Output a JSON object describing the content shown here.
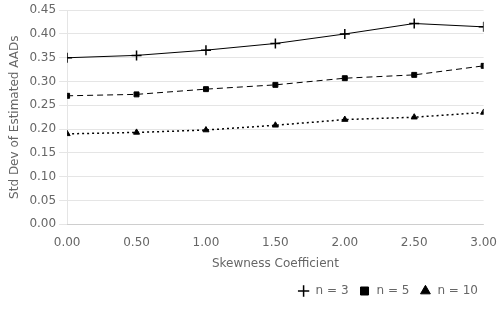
{
  "chart_data": {
    "type": "line",
    "xlabel": "Skewness Coefficient",
    "ylabel": "Std Dev of Estimated AADs",
    "x": [
      0.0,
      0.5,
      1.0,
      1.5,
      2.0,
      2.5,
      3.0
    ],
    "series": [
      {
        "name": "n = 3",
        "color": "#000000",
        "marker": "plus",
        "line_style": "solid",
        "values": [
          0.35,
          0.355,
          0.366,
          0.38,
          0.4,
          0.422,
          0.415
        ]
      },
      {
        "name": "n = 5",
        "color": "#000000",
        "marker": "square",
        "line_style": "dashed",
        "values": [
          0.27,
          0.273,
          0.284,
          0.293,
          0.307,
          0.314,
          0.333
        ]
      },
      {
        "name": "n = 10",
        "color": "#000000",
        "marker": "triangle",
        "line_style": "dotted",
        "values": [
          0.19,
          0.193,
          0.198,
          0.208,
          0.22,
          0.225,
          0.235
        ]
      }
    ],
    "xlim": [
      0.0,
      3.0
    ],
    "ylim": [
      0.0,
      0.45
    ],
    "xticks": [
      {
        "value": 0.0,
        "label": "0.00"
      },
      {
        "value": 0.5,
        "label": "0.50"
      },
      {
        "value": 1.0,
        "label": "1.00"
      },
      {
        "value": 1.5,
        "label": "1.50"
      },
      {
        "value": 2.0,
        "label": "2.00"
      },
      {
        "value": 2.5,
        "label": "2.50"
      },
      {
        "value": 3.0,
        "label": "3.00"
      }
    ],
    "yticks": [
      {
        "value": 0.0,
        "label": "0.00"
      },
      0.05,
      {
        "value": 0.1,
        "label": "0.10"
      },
      0.15,
      {
        "value": 0.2,
        "label": "0.20"
      },
      0.25,
      {
        "value": 0.3,
        "label": "0.30"
      },
      0.35,
      {
        "value": 0.4,
        "label": "0.40"
      },
      0.45
    ],
    "grid": "y",
    "legend": "lower right"
  }
}
